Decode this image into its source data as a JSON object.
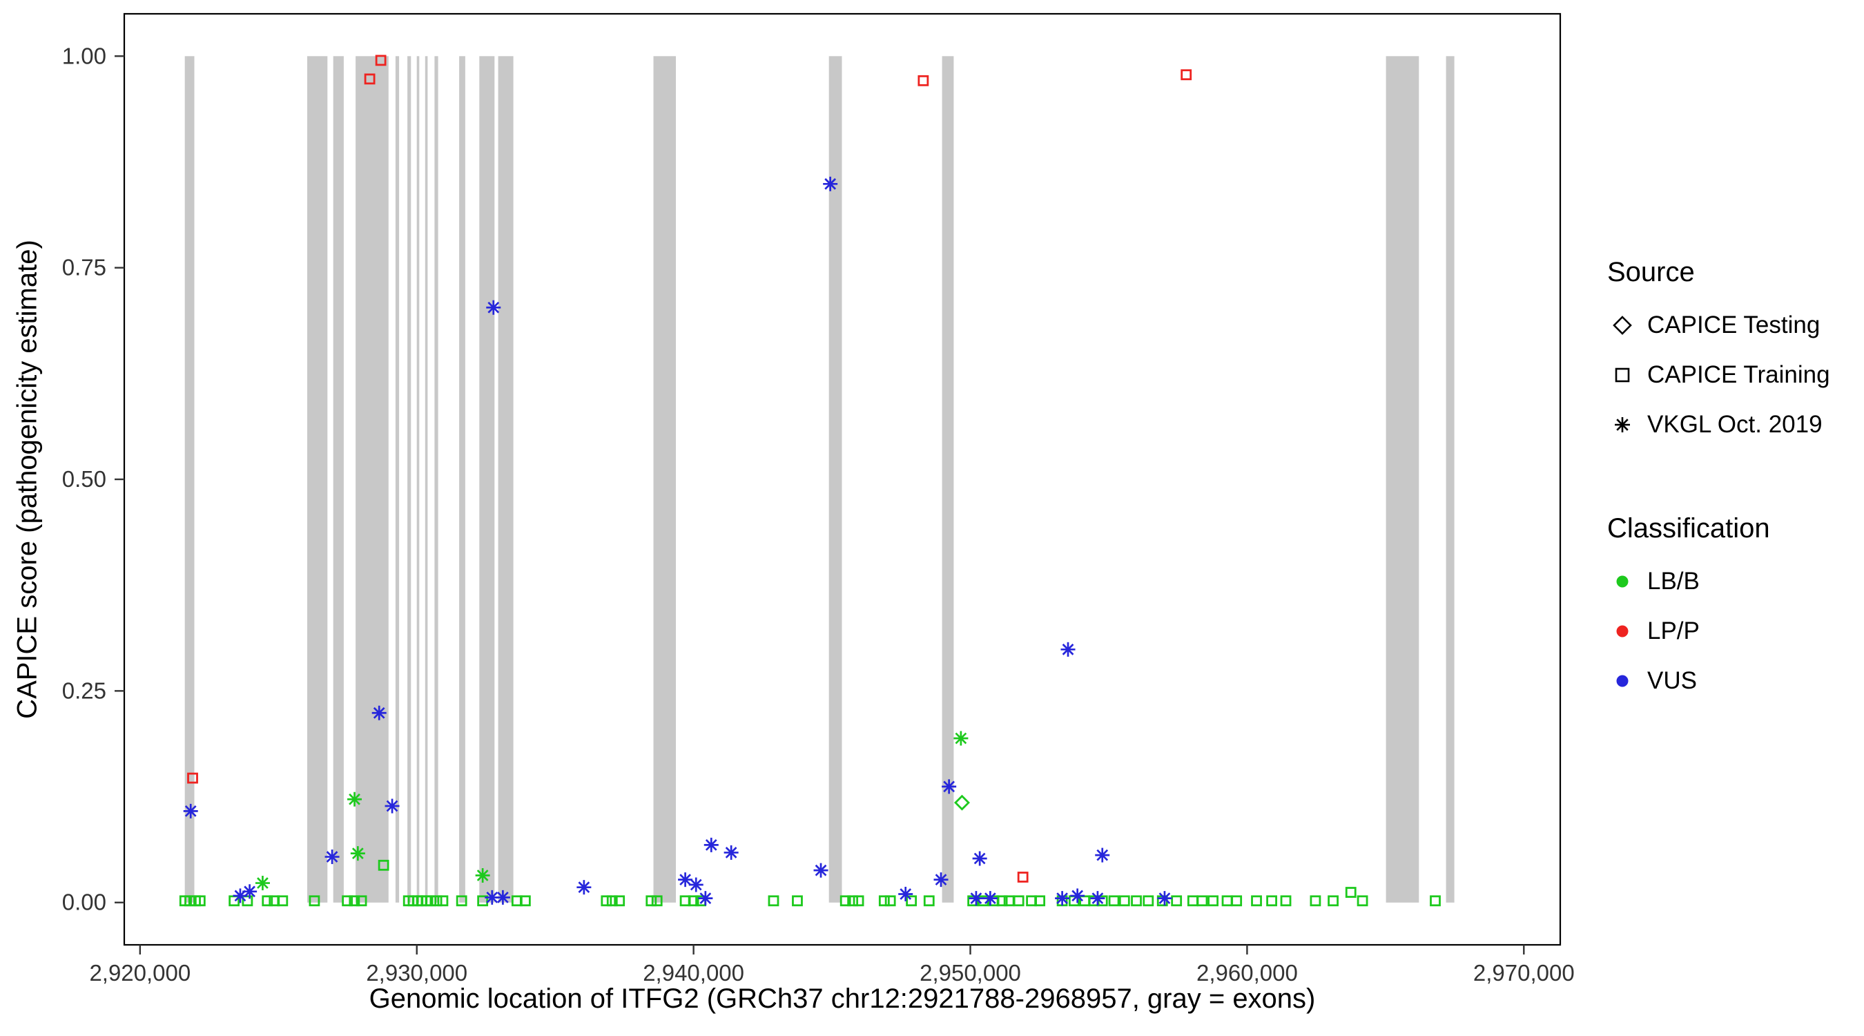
{
  "colors": {
    "LB/B": "#1dc91d",
    "LP/P": "#ee2320",
    "VUS": "#2626db",
    "exon": "#c8c8c8",
    "tick": "#333333"
  },
  "legend": {
    "source": {
      "title": "Source",
      "items": [
        {
          "label": "CAPICE Testing",
          "marker": "diamond"
        },
        {
          "label": "CAPICE Training",
          "marker": "square"
        },
        {
          "label": "VKGL Oct. 2019",
          "marker": "asterisk"
        }
      ]
    },
    "classification": {
      "title": "Classification",
      "items": [
        {
          "label": "LB/B",
          "color_key": "LB/B"
        },
        {
          "label": "LP/P",
          "color_key": "LP/P"
        },
        {
          "label": "VUS",
          "color_key": "VUS"
        }
      ]
    }
  },
  "chart_data": {
    "type": "scatter",
    "xlabel": "Genomic location of ITFG2 (GRCh37 chr12:2921788-2968957, gray = exons)",
    "ylabel": "CAPICE score (pathogenicity estimate)",
    "xlim": [
      2919430,
      2971315
    ],
    "ylim": [
      -0.05,
      1.05
    ],
    "grid": false,
    "legend_position": "right",
    "x_ticks": [
      {
        "v": 2920000,
        "label": "2,920,000"
      },
      {
        "v": 2930000,
        "label": "2,930,000"
      },
      {
        "v": 2940000,
        "label": "2,940,000"
      },
      {
        "v": 2950000,
        "label": "2,950,000"
      },
      {
        "v": 2960000,
        "label": "2,960,000"
      },
      {
        "v": 2970000,
        "label": "2,970,000"
      }
    ],
    "y_ticks": [
      {
        "v": 0.0,
        "label": "0.00"
      },
      {
        "v": 0.25,
        "label": "0.25"
      },
      {
        "v": 0.5,
        "label": "0.50"
      },
      {
        "v": 0.75,
        "label": "0.75"
      },
      {
        "v": 1.0,
        "label": "1.00"
      }
    ],
    "exons": [
      [
        2921617,
        2921960
      ],
      [
        2926040,
        2926770
      ],
      [
        2926980,
        2927360
      ],
      [
        2927790,
        2928980
      ],
      [
        2929230,
        2929360
      ],
      [
        2929660,
        2929790
      ],
      [
        2930000,
        2930090
      ],
      [
        2930300,
        2930390
      ],
      [
        2930640,
        2930770
      ],
      [
        2931530,
        2931750
      ],
      [
        2932260,
        2932810
      ],
      [
        2932940,
        2933490
      ],
      [
        2938550,
        2939360
      ],
      [
        2944890,
        2945360
      ],
      [
        2948980,
        2949400
      ],
      [
        2965020,
        2966210
      ],
      [
        2967190,
        2967490
      ]
    ],
    "series": [
      {
        "name": "CAPICE Training LB/B",
        "source": "CAPICE Training",
        "classification": "LB/B",
        "marker": "square",
        "points": [
          [
            2921620,
            0.002
          ],
          [
            2921800,
            0.002
          ],
          [
            2922000,
            0.002
          ],
          [
            2922170,
            0.002
          ],
          [
            2923400,
            0.002
          ],
          [
            2923880,
            0.002
          ],
          [
            2924600,
            0.002
          ],
          [
            2924850,
            0.002
          ],
          [
            2925150,
            0.002
          ],
          [
            2926300,
            0.002
          ],
          [
            2927490,
            0.002
          ],
          [
            2927745,
            0.002
          ],
          [
            2928000,
            0.002
          ],
          [
            2928800,
            0.044
          ],
          [
            2929700,
            0.002
          ],
          [
            2929870,
            0.002
          ],
          [
            2930040,
            0.002
          ],
          [
            2930170,
            0.002
          ],
          [
            2930340,
            0.002
          ],
          [
            2930510,
            0.002
          ],
          [
            2930720,
            0.002
          ],
          [
            2930940,
            0.002
          ],
          [
            2931620,
            0.002
          ],
          [
            2932380,
            0.002
          ],
          [
            2933620,
            0.002
          ],
          [
            2933920,
            0.002
          ],
          [
            2936850,
            0.002
          ],
          [
            2937060,
            0.002
          ],
          [
            2937320,
            0.002
          ],
          [
            2938470,
            0.002
          ],
          [
            2938680,
            0.002
          ],
          [
            2939700,
            0.002
          ],
          [
            2940000,
            0.002
          ],
          [
            2940260,
            0.002
          ],
          [
            2942890,
            0.002
          ],
          [
            2943750,
            0.002
          ],
          [
            2945490,
            0.002
          ],
          [
            2945750,
            0.002
          ],
          [
            2945960,
            0.002
          ],
          [
            2946890,
            0.002
          ],
          [
            2947110,
            0.002
          ],
          [
            2947870,
            0.002
          ],
          [
            2948510,
            0.002
          ],
          [
            2950090,
            0.002
          ],
          [
            2950470,
            0.002
          ],
          [
            2950850,
            0.002
          ],
          [
            2951150,
            0.002
          ],
          [
            2951400,
            0.002
          ],
          [
            2951750,
            0.002
          ],
          [
            2952210,
            0.002
          ],
          [
            2952510,
            0.002
          ],
          [
            2953320,
            0.002
          ],
          [
            2953750,
            0.002
          ],
          [
            2954130,
            0.002
          ],
          [
            2954470,
            0.002
          ],
          [
            2954770,
            0.002
          ],
          [
            2955190,
            0.002
          ],
          [
            2955570,
            0.002
          ],
          [
            2956000,
            0.002
          ],
          [
            2956430,
            0.002
          ],
          [
            2956940,
            0.002
          ],
          [
            2957450,
            0.002
          ],
          [
            2958040,
            0.002
          ],
          [
            2958380,
            0.002
          ],
          [
            2958770,
            0.002
          ],
          [
            2959280,
            0.002
          ],
          [
            2959620,
            0.002
          ],
          [
            2960340,
            0.002
          ],
          [
            2960890,
            0.002
          ],
          [
            2961400,
            0.002
          ],
          [
            2962470,
            0.002
          ],
          [
            2963110,
            0.002
          ],
          [
            2963750,
            0.012
          ],
          [
            2964170,
            0.002
          ],
          [
            2966800,
            0.002
          ]
        ]
      },
      {
        "name": "CAPICE Training LP/P",
        "source": "CAPICE Training",
        "classification": "LP/P",
        "marker": "square",
        "points": [
          [
            2921900,
            0.147
          ],
          [
            2928300,
            0.973
          ],
          [
            2928700,
            0.995
          ],
          [
            2948300,
            0.971
          ],
          [
            2951900,
            0.03
          ],
          [
            2957800,
            0.978
          ]
        ]
      },
      {
        "name": "CAPICE Testing LB/B",
        "source": "CAPICE Testing",
        "classification": "LB/B",
        "marker": "diamond",
        "points": [
          [
            2949700,
            0.118
          ]
        ]
      },
      {
        "name": "VKGL Oct. 2019 LB/B",
        "source": "VKGL Oct. 2019",
        "classification": "LB/B",
        "marker": "asterisk",
        "points": [
          [
            2924430,
            0.023
          ],
          [
            2927750,
            0.122
          ],
          [
            2927870,
            0.058
          ],
          [
            2932380,
            0.032
          ],
          [
            2949660,
            0.194
          ]
        ]
      },
      {
        "name": "VKGL Oct. 2019 VUS",
        "source": "VKGL Oct. 2019",
        "classification": "VUS",
        "marker": "asterisk",
        "points": [
          [
            2921830,
            0.108
          ],
          [
            2923620,
            0.008
          ],
          [
            2923960,
            0.013
          ],
          [
            2926940,
            0.054
          ],
          [
            2928640,
            0.224
          ],
          [
            2929110,
            0.114
          ],
          [
            2932770,
            0.703
          ],
          [
            2932720,
            0.006
          ],
          [
            2933110,
            0.006
          ],
          [
            2936040,
            0.018
          ],
          [
            2939700,
            0.027
          ],
          [
            2940090,
            0.021
          ],
          [
            2940430,
            0.005
          ],
          [
            2940640,
            0.068
          ],
          [
            2941360,
            0.059
          ],
          [
            2944600,
            0.038
          ],
          [
            2944940,
            0.849
          ],
          [
            2947660,
            0.01
          ],
          [
            2948940,
            0.027
          ],
          [
            2949230,
            0.137
          ],
          [
            2950210,
            0.005
          ],
          [
            2950340,
            0.052
          ],
          [
            2950720,
            0.005
          ],
          [
            2953320,
            0.005
          ],
          [
            2953530,
            0.299
          ],
          [
            2953870,
            0.008
          ],
          [
            2954600,
            0.005
          ],
          [
            2954770,
            0.056
          ],
          [
            2957020,
            0.005
          ]
        ]
      }
    ]
  }
}
